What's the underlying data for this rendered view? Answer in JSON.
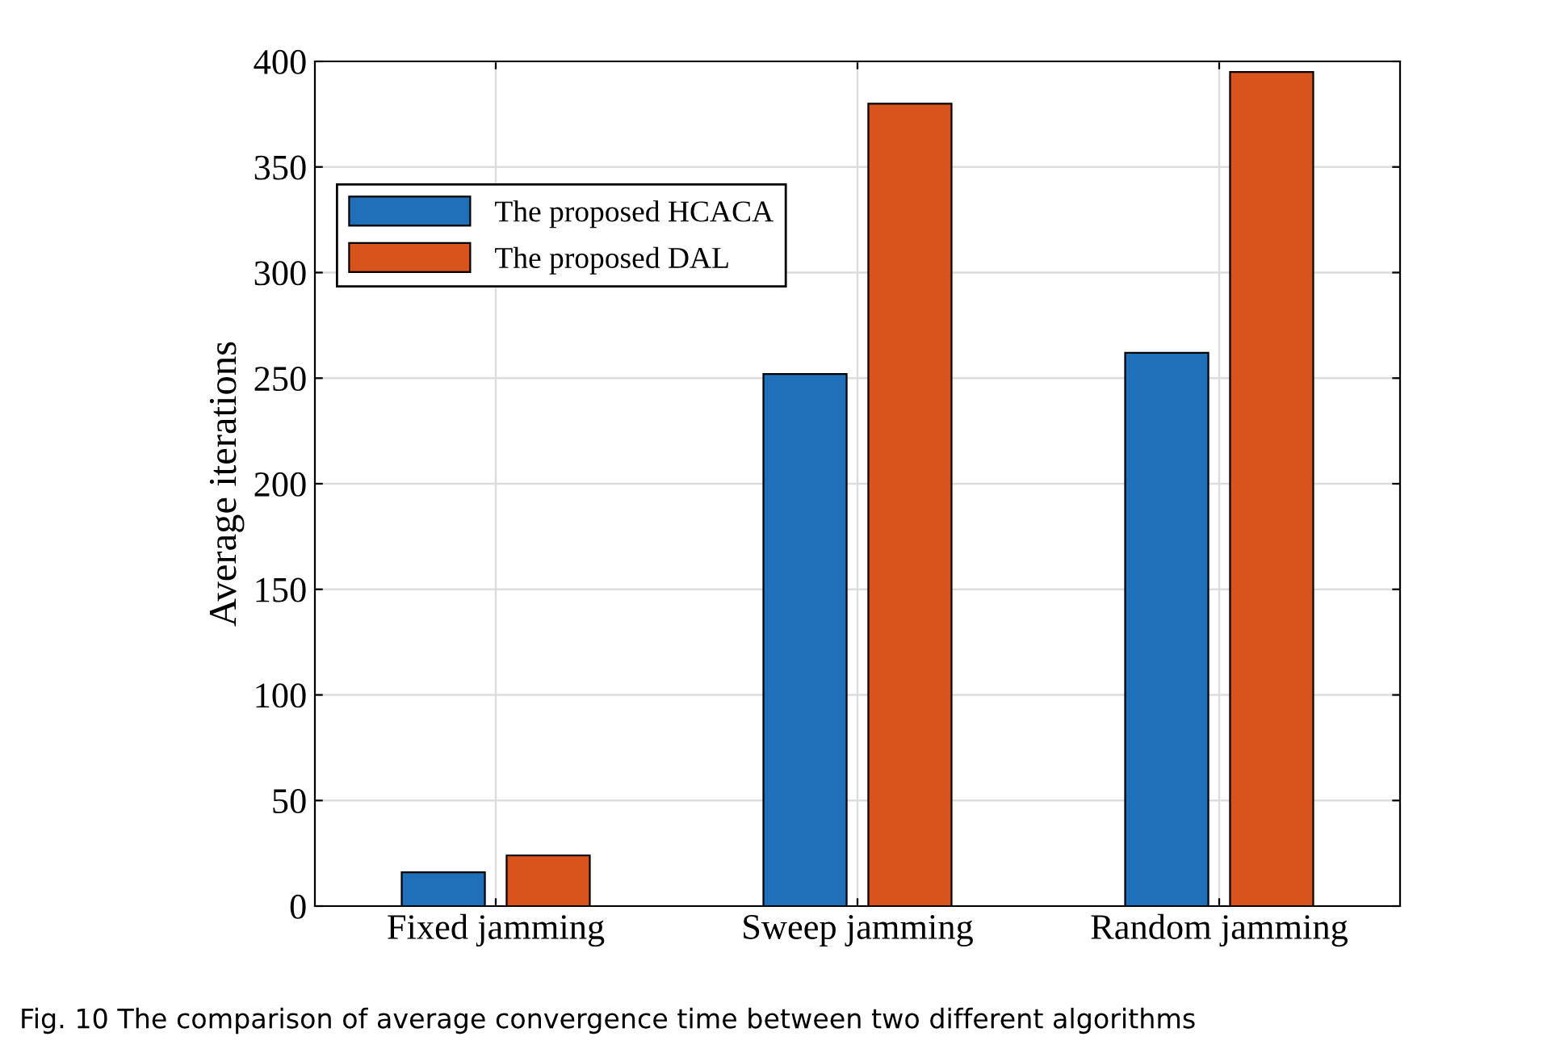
{
  "chart_data": {
    "type": "bar",
    "ylabel": "Average iterations",
    "categories": [
      "Fixed jamming",
      "Sweep jamming",
      "Random jamming"
    ],
    "series": [
      {
        "name": "The proposed HCACA",
        "color": "#1f70b8",
        "values": [
          16,
          252,
          262
        ]
      },
      {
        "name": "The proposed DAL",
        "color": "#d9541d",
        "values": [
          24,
          380,
          395
        ]
      }
    ],
    "ylim": [
      0,
      400
    ],
    "yticks": [
      0,
      50,
      100,
      150,
      200,
      250,
      300,
      350,
      400
    ],
    "grid": true,
    "legend": "top left",
    "annotations": [
      "Fig. 10 The comparison of average convergence time between two different algorithms"
    ]
  }
}
